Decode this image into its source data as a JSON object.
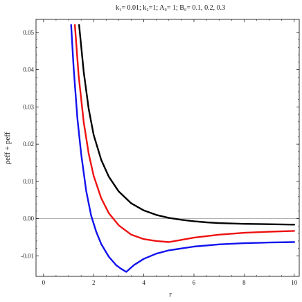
{
  "chart_data": {
    "type": "line",
    "title": "k₁= 0.01; k₂=1; A₀= 1; B₀= 0.1, 0.2, 0.3",
    "xlabel": "r",
    "ylabel": "ρeff + peff",
    "xlim": [
      -0.3,
      10.2
    ],
    "ylim": [
      -0.0155,
      0.0535
    ],
    "x_ticks": [
      0,
      2,
      4,
      6,
      8,
      10
    ],
    "y_ticks": [
      -0.01,
      0.0,
      0.01,
      0.02,
      0.03,
      0.04,
      0.05
    ],
    "y_tick_labels": [
      "-0.01",
      "0.00",
      "0.01",
      "0.02",
      "0.03",
      "0.04",
      "0.05"
    ],
    "reference_line_y": 0,
    "grid": false,
    "legend": "none",
    "series": [
      {
        "color": "#000000",
        "x": [
          1.42,
          1.6,
          1.8,
          2.0,
          2.3,
          2.6,
          3.0,
          3.5,
          4.0,
          4.5,
          5.0,
          5.5,
          6.0,
          6.5,
          7.0,
          8.0,
          9.0,
          10.0
        ],
        "y": [
          0.052,
          0.0395,
          0.0295,
          0.0225,
          0.0158,
          0.0113,
          0.0073,
          0.0041,
          0.0022,
          0.001,
          0.0002,
          -0.0003,
          -0.0007,
          -0.001,
          -0.0012,
          -0.0014,
          -0.0015,
          -0.0016
        ]
      },
      {
        "color": "#ee1111",
        "x": [
          1.25,
          1.4,
          1.6,
          1.8,
          2.0,
          2.3,
          2.6,
          3.0,
          3.5,
          4.0,
          4.5,
          5.0,
          5.5,
          6.0,
          7.0,
          8.0,
          9.0,
          10.0
        ],
        "y": [
          0.052,
          0.0385,
          0.026,
          0.0175,
          0.0115,
          0.0055,
          0.0015,
          -0.0018,
          -0.0043,
          -0.0055,
          -0.006,
          -0.0063,
          -0.0057,
          -0.0051,
          -0.0043,
          -0.0038,
          -0.0035,
          -0.0033
        ]
      },
      {
        "color": "#1111ee",
        "x": [
          1.1,
          1.2,
          1.35,
          1.5,
          1.7,
          1.9,
          2.1,
          2.3,
          2.6,
          2.9,
          3.1,
          3.3,
          3.6,
          4.0,
          4.5,
          5.0,
          6.0,
          7.0,
          8.0,
          9.0,
          10.0
        ],
        "y": [
          0.052,
          0.0405,
          0.027,
          0.0175,
          0.0075,
          0.0008,
          -0.0035,
          -0.0068,
          -0.0102,
          -0.0125,
          -0.0135,
          -0.0143,
          -0.0125,
          -0.0108,
          -0.0094,
          -0.0085,
          -0.0075,
          -0.0069,
          -0.0066,
          -0.0064,
          -0.0063
        ]
      }
    ]
  }
}
